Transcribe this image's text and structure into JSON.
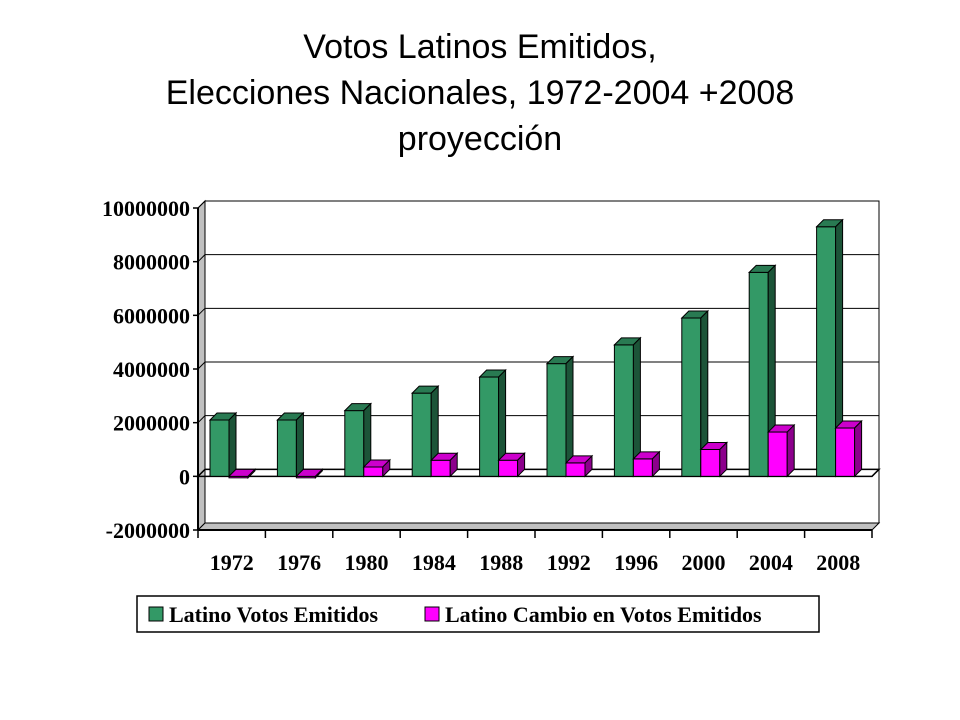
{
  "title_lines": [
    "Votos Latinos Emitidos,",
    "Elecciones Nacionales, 1972-2004 +2008",
    "proyección"
  ],
  "chart_data": {
    "type": "bar",
    "title": "Votos Latinos Emitidos, Elecciones Nacionales, 1972-2004 +2008 proyección",
    "categories": [
      "1972",
      "1976",
      "1980",
      "1984",
      "1988",
      "1992",
      "1996",
      "2000",
      "2004",
      "2008"
    ],
    "series": [
      {
        "name": "Latino Votos Emitidos",
        "color": "#339966",
        "values": [
          2100000,
          2100000,
          2450000,
          3100000,
          3700000,
          4200000,
          4900000,
          5900000,
          7600000,
          9300000
        ]
      },
      {
        "name": "Latino Cambio en Votos Emitidos",
        "color": "#FF00FF",
        "values": [
          0,
          -50000,
          350000,
          600000,
          600000,
          500000,
          650000,
          1000000,
          1650000,
          1800000
        ]
      }
    ],
    "ylim": [
      -2000000,
      10000000
    ],
    "yticks": [
      "10000000",
      "8000000",
      "6000000",
      "4000000",
      "2000000",
      "0",
      "-2000000"
    ],
    "grid": true,
    "legend_position": "bottom"
  }
}
